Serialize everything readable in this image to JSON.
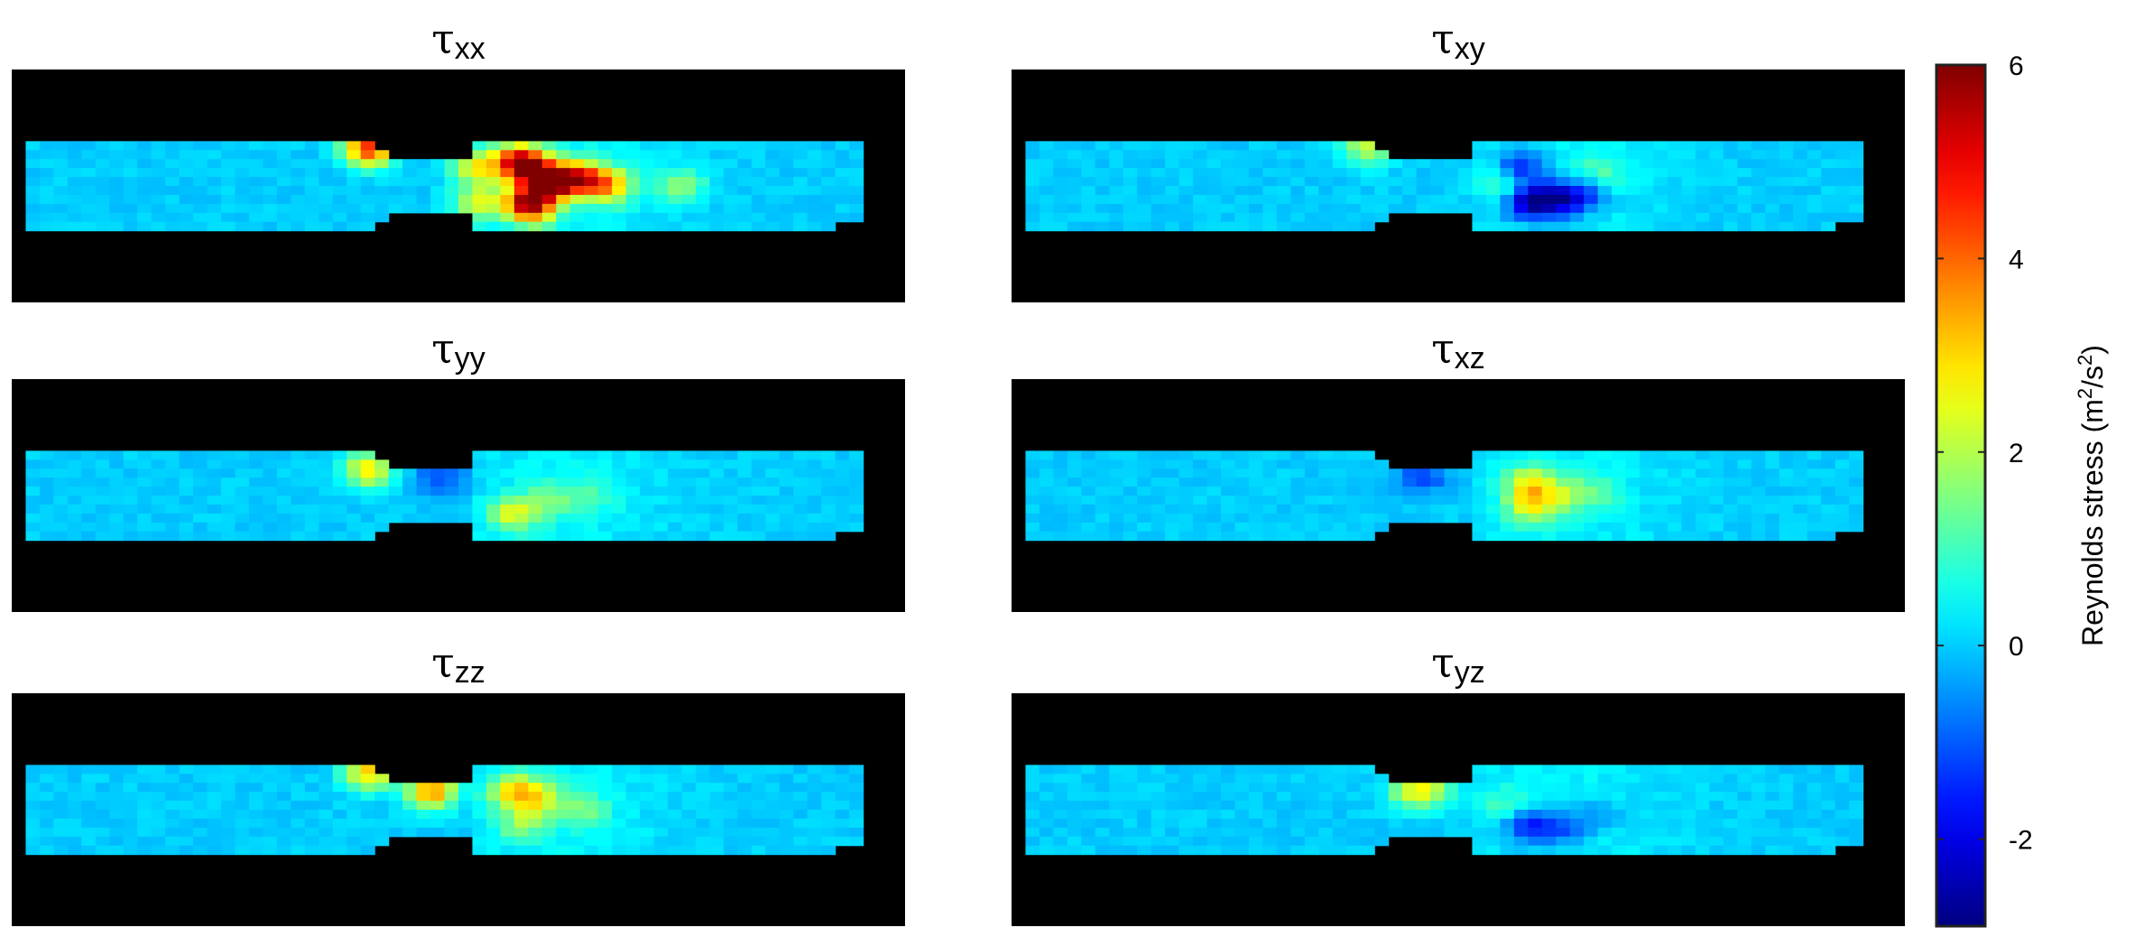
{
  "chart_data": {
    "type": "heatmap",
    "panels": [
      {
        "id": "xx",
        "symbol": "τ",
        "subscript": "xx",
        "hotspots": [
          {
            "x": 0.57,
            "y": 0.4,
            "v": 5.7
          },
          {
            "x": 0.6,
            "y": 0.48,
            "v": 5.3
          },
          {
            "x": 0.58,
            "y": 0.58,
            "v": 5.6
          },
          {
            "x": 0.635,
            "y": 0.47,
            "v": 4.2
          },
          {
            "x": 0.67,
            "y": 0.5,
            "v": 2.8
          },
          {
            "x": 0.52,
            "y": 0.42,
            "v": 2.4
          },
          {
            "x": 0.52,
            "y": 0.57,
            "v": 2.2
          },
          {
            "x": 0.75,
            "y": 0.5,
            "v": 1.5
          },
          {
            "x": 0.4,
            "y": 0.34,
            "v": 4.5
          }
        ]
      },
      {
        "id": "xy",
        "symbol": "τ",
        "subscript": "xy",
        "hotspots": [
          {
            "x": 0.57,
            "y": 0.42,
            "v": -2.0
          },
          {
            "x": 0.58,
            "y": 0.57,
            "v": -2.6
          },
          {
            "x": 0.61,
            "y": 0.56,
            "v": -2.2
          },
          {
            "x": 0.64,
            "y": 0.54,
            "v": -1.4
          },
          {
            "x": 0.55,
            "y": 0.48,
            "v": 1.2
          },
          {
            "x": 0.4,
            "y": 0.33,
            "v": 2.2
          },
          {
            "x": 0.66,
            "y": 0.44,
            "v": 0.9
          }
        ]
      },
      {
        "id": "yy",
        "symbol": "τ",
        "subscript": "yy",
        "hotspots": [
          {
            "x": 0.56,
            "y": 0.58,
            "v": 2.1
          },
          {
            "x": 0.6,
            "y": 0.52,
            "v": 1.2
          },
          {
            "x": 0.48,
            "y": 0.42,
            "v": -1.2
          },
          {
            "x": 0.4,
            "y": 0.39,
            "v": 2.8
          },
          {
            "x": 0.65,
            "y": 0.5,
            "v": 0.8
          }
        ]
      },
      {
        "id": "xz",
        "symbol": "τ",
        "subscript": "xz",
        "hotspots": [
          {
            "x": 0.58,
            "y": 0.45,
            "v": 2.3
          },
          {
            "x": 0.58,
            "y": 0.55,
            "v": 2.0
          },
          {
            "x": 0.62,
            "y": 0.5,
            "v": 1.5
          },
          {
            "x": 0.46,
            "y": 0.42,
            "v": -1.2
          },
          {
            "x": 0.66,
            "y": 0.48,
            "v": 0.8
          }
        ]
      },
      {
        "id": "zz",
        "symbol": "τ",
        "subscript": "zz",
        "hotspots": [
          {
            "x": 0.56,
            "y": 0.42,
            "v": 2.4
          },
          {
            "x": 0.59,
            "y": 0.45,
            "v": 2.0
          },
          {
            "x": 0.47,
            "y": 0.42,
            "v": 3.6
          },
          {
            "x": 0.57,
            "y": 0.56,
            "v": 1.4
          },
          {
            "x": 0.64,
            "y": 0.5,
            "v": 1.2
          },
          {
            "x": 0.4,
            "y": 0.34,
            "v": 3.0
          }
        ]
      },
      {
        "id": "yz",
        "symbol": "τ",
        "subscript": "yz",
        "hotspots": [
          {
            "x": 0.58,
            "y": 0.57,
            "v": -1.8
          },
          {
            "x": 0.62,
            "y": 0.58,
            "v": -1.2
          },
          {
            "x": 0.45,
            "y": 0.42,
            "v": 2.4
          },
          {
            "x": 0.48,
            "y": 0.42,
            "v": 1.0
          },
          {
            "x": 0.55,
            "y": 0.48,
            "v": 0.8
          },
          {
            "x": 0.66,
            "y": 0.52,
            "v": -0.6
          }
        ]
      }
    ],
    "colorbar": {
      "colormap": "jet",
      "range": [
        -2.9,
        6.0
      ],
      "ticks": [
        -2,
        0,
        2,
        4,
        6
      ],
      "label": "Reynolds stress (m",
      "label_sup1": "2",
      "label_mid": "/s",
      "label_sup2": "2",
      "label_end": ")"
    },
    "background_color": "#000000",
    "baseline_value": 0.0
  }
}
